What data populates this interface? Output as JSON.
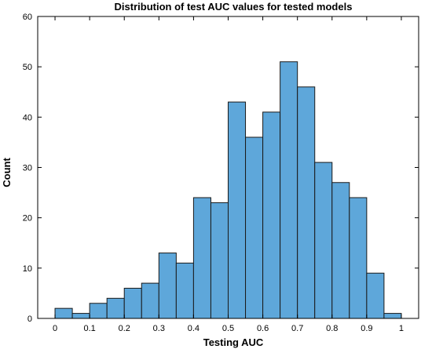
{
  "chart_data": {
    "type": "bar",
    "title": "Distribution of test AUC values for tested models",
    "xlabel": "Testing AUC",
    "ylabel": "Count",
    "xlim": [
      -0.05,
      1.05
    ],
    "ylim": [
      0,
      60
    ],
    "bin_width": 0.05,
    "bin_starts": [
      0,
      0.05,
      0.1,
      0.15,
      0.2,
      0.25,
      0.3,
      0.35,
      0.4,
      0.45,
      0.5,
      0.55,
      0.6,
      0.65,
      0.7,
      0.75,
      0.8,
      0.85,
      0.9,
      0.95
    ],
    "values": [
      2,
      1,
      3,
      4,
      6,
      7,
      13,
      11,
      24,
      23,
      43,
      36,
      41,
      51,
      46,
      31,
      27,
      24,
      9,
      1
    ],
    "x_ticks": [
      "0",
      "0.1",
      "0.2",
      "0.3",
      "0.4",
      "0.5",
      "0.6",
      "0.7",
      "0.8",
      "0.9",
      "1"
    ],
    "y_ticks": [
      "0",
      "10",
      "20",
      "30",
      "40",
      "50",
      "60"
    ],
    "bar_color": "#5ea7da",
    "edge_color": "#1a1a1a",
    "grid": false,
    "legend": "none"
  }
}
